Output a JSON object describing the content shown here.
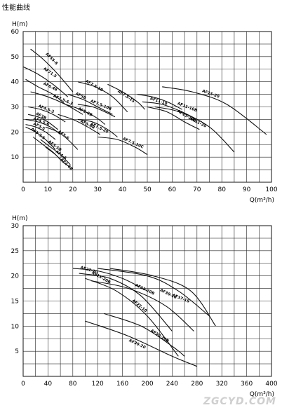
{
  "page_title": "性能曲线",
  "watermark": "ZGCYD.COM",
  "chart_data": [
    {
      "type": "line",
      "ylabel": "H(m)",
      "xlabel": "Q(m³/h)",
      "xlim": [
        0,
        100
      ],
      "ylim": [
        0,
        60
      ],
      "xticks": [
        0,
        10,
        20,
        30,
        40,
        50,
        60,
        70,
        80,
        90,
        100
      ],
      "yticks": [
        10,
        20,
        30,
        40,
        50,
        60
      ],
      "grid": true,
      "series": [
        {
          "name": "AF55-8",
          "x": [
            3,
            8,
            14,
            20
          ],
          "y": [
            53,
            49,
            43,
            36
          ],
          "label_at": [
            9,
            51
          ]
        },
        {
          "name": "AF71.5",
          "x": [
            0,
            6,
            12,
            18
          ],
          "y": [
            46,
            43,
            39,
            34
          ],
          "label_at": [
            8,
            45
          ]
        },
        {
          "name": "AF6.48",
          "x": [
            1,
            6,
            12,
            17
          ],
          "y": [
            41,
            38,
            35,
            31
          ],
          "label_at": [
            8,
            39
          ]
        },
        {
          "name": "AF7.5-6.3",
          "x": [
            3,
            10,
            17,
            24
          ],
          "y": [
            36,
            34,
            31,
            27
          ],
          "label_at": [
            12,
            34
          ]
        },
        {
          "name": "AF5B",
          "x": [
            18,
            24,
            30,
            36
          ],
          "y": [
            35,
            33,
            30,
            27
          ],
          "label_at": [
            21,
            35
          ]
        },
        {
          "name": "AF7.5-10",
          "x": [
            22,
            29,
            36,
            42
          ],
          "y": [
            40,
            38,
            34,
            28
          ],
          "label_at": [
            25,
            40
          ]
        },
        {
          "name": "AF7.5-15",
          "x": [
            34,
            40,
            46,
            49
          ],
          "y": [
            39,
            36,
            32,
            29
          ],
          "label_at": [
            38,
            36
          ]
        },
        {
          "name": "AF7.5-10B",
          "x": [
            22,
            28,
            33,
            37
          ],
          "y": [
            31,
            30,
            28,
            26
          ],
          "label_at": [
            27,
            32
          ]
        },
        {
          "name": "AF5-6B",
          "x": [
            17,
            23,
            29,
            33
          ],
          "y": [
            31,
            29,
            26,
            23
          ],
          "label_at": [
            22,
            29
          ]
        },
        {
          "name": "AF4.5-3",
          "x": [
            2,
            7,
            12,
            17
          ],
          "y": [
            30,
            29,
            27,
            24
          ],
          "label_at": [
            6,
            30
          ]
        },
        {
          "name": "AF3B",
          "x": [
            2,
            6,
            10,
            14
          ],
          "y": [
            27,
            26,
            24,
            21
          ],
          "label_at": [
            5,
            27
          ]
        },
        {
          "name": "AF4.5-6",
          "x": [
            1,
            6,
            11,
            15
          ],
          "y": [
            25,
            24,
            22,
            19
          ],
          "label_at": [
            4,
            25
          ]
        },
        {
          "name": "AF3-5",
          "x": [
            1,
            5,
            9,
            13
          ],
          "y": [
            23,
            22,
            20,
            17
          ],
          "label_at": [
            4,
            23
          ]
        },
        {
          "name": "AF3-3.5",
          "x": [
            1,
            5,
            9,
            13
          ],
          "y": [
            22,
            20,
            17,
            13
          ],
          "label_at": [
            3,
            21
          ]
        },
        {
          "name": "AF5-6",
          "x": [
            9,
            14,
            18,
            22
          ],
          "y": [
            22,
            20,
            17,
            13
          ],
          "label_at": [
            14,
            20
          ]
        },
        {
          "name": "AF3-5B",
          "x": [
            4,
            8,
            12,
            15
          ],
          "y": [
            18,
            15,
            12,
            9
          ],
          "label_at": [
            10,
            16
          ]
        },
        {
          "name": "AF4-6",
          "x": [
            7,
            11,
            15,
            19
          ],
          "y": [
            17,
            14,
            11,
            7
          ],
          "label_at": [
            13,
            12
          ]
        },
        {
          "name": "AF4-6B",
          "x": [
            9,
            13,
            16,
            19
          ],
          "y": [
            14,
            11,
            8,
            6
          ],
          "label_at": [
            15,
            9
          ]
        },
        {
          "name": "AF5-8B",
          "x": [
            14,
            20,
            26,
            31
          ],
          "y": [
            27,
            25,
            22,
            19
          ],
          "label_at": [
            23,
            24
          ]
        },
        {
          "name": "AF7.5-20",
          "x": [
            22,
            28,
            34,
            38
          ],
          "y": [
            25,
            24,
            21,
            18
          ],
          "label_at": [
            27,
            23
          ]
        },
        {
          "name": "AF7.5-10C",
          "x": [
            30,
            38,
            45,
            50
          ],
          "y": [
            18,
            17,
            14,
            11
          ],
          "label_at": [
            40,
            17
          ]
        },
        {
          "name": "AF11-10",
          "x": [
            46,
            52,
            58,
            64
          ],
          "y": [
            35,
            34,
            32,
            29
          ],
          "label_at": [
            51,
            33
          ]
        },
        {
          "name": "AF11-10B",
          "x": [
            48,
            56,
            64,
            72
          ],
          "y": [
            32,
            31,
            28,
            24
          ],
          "label_at": [
            62,
            31
          ]
        },
        {
          "name": "AF11-20",
          "x": [
            53,
            63,
            75,
            85
          ],
          "y": [
            30,
            28,
            22,
            12
          ],
          "label_at": [
            67,
            25
          ]
        },
        {
          "name": "AF11-20B",
          "x": [
            50,
            58,
            65,
            71
          ],
          "y": [
            30,
            28,
            24,
            21
          ],
          "label_at": [
            62,
            28
          ]
        },
        {
          "name": "AF15-20",
          "x": [
            56,
            68,
            82,
            98
          ],
          "y": [
            38,
            36,
            31,
            19
          ],
          "label_at": [
            72,
            36
          ]
        }
      ]
    },
    {
      "type": "line",
      "ylabel": "H(m)",
      "xlabel": "Q(m³/h)",
      "xlim": [
        0,
        400
      ],
      "ylim": [
        0,
        30
      ],
      "xticks": [
        0,
        40,
        80,
        120,
        160,
        200,
        240,
        280,
        320,
        360,
        400
      ],
      "yticks": [
        5,
        10,
        15,
        20,
        25,
        30
      ],
      "grid": true,
      "series": [
        {
          "name": "AF22-20",
          "x": [
            80,
            120,
            160,
            200
          ],
          "y": [
            21.5,
            21,
            19.5,
            17
          ],
          "label_at": [
            92,
            21.5
          ]
        },
        {
          "name": "AF15-20B",
          "x": [
            90,
            140,
            190,
            240
          ],
          "y": [
            20.5,
            19.5,
            16,
            9
          ],
          "label_at": [
            110,
            20.5
          ]
        },
        {
          "name": "AF22-10",
          "x": [
            100,
            150,
            200,
            250
          ],
          "y": [
            19.5,
            17,
            12,
            4
          ],
          "label_at": [
            175,
            15
          ]
        },
        {
          "name": "AF22-20B",
          "x": [
            110,
            170,
            230,
            275
          ],
          "y": [
            19,
            17.5,
            14,
            9
          ],
          "label_at": [
            180,
            18
          ]
        },
        {
          "name": "AF30-10",
          "x": [
            120,
            200,
            250,
            300
          ],
          "y": [
            21.5,
            20,
            17,
            12
          ],
          "label_at": [
            220,
            17
          ]
        },
        {
          "name": "AF37-15",
          "x": [
            140,
            210,
            270,
            310
          ],
          "y": [
            21.5,
            20,
            17,
            10
          ],
          "label_at": [
            240,
            16
          ]
        },
        {
          "name": "AF30-20",
          "x": [
            100,
            170,
            240,
            280
          ],
          "y": [
            11,
            8,
            4,
            2
          ],
          "label_at": [
            170,
            7
          ]
        },
        {
          "name": "AF30-20B",
          "x": [
            130,
            190,
            240,
            260
          ],
          "y": [
            12.5,
            10,
            6,
            4
          ],
          "label_at": [
            205,
            9
          ]
        }
      ]
    }
  ]
}
